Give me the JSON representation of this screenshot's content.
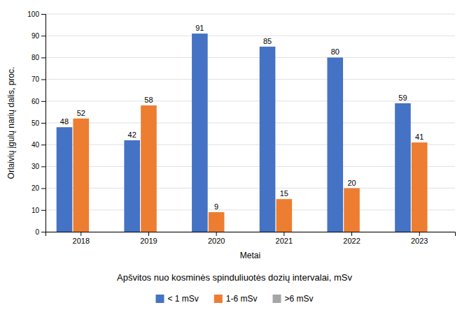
{
  "chart_data": {
    "type": "bar",
    "subtitle": "Apšvitos nuo kosminės spinduliuotės dozių intervalai, mSv",
    "x_label": "Metai",
    "y_label": "Orlaivių įgulų narių dalis, proc.",
    "categories": [
      "2018",
      "2019",
      "2020",
      "2021",
      "2022",
      "2023"
    ],
    "series": [
      {
        "name": "< 1 mSv",
        "color": "#4472C4",
        "values": [
          48,
          42,
          91,
          85,
          80,
          59
        ]
      },
      {
        "name": "1-6 mSv",
        "color": "#ED7D31",
        "values": [
          52,
          58,
          9,
          15,
          20,
          41
        ]
      },
      {
        "name": ">6 mSv",
        "color": "#A5A5A5",
        "values": [
          0,
          0,
          0,
          0,
          0,
          0
        ]
      }
    ],
    "ylim": [
      0,
      100
    ],
    "yticks": [
      0,
      10,
      20,
      30,
      40,
      50,
      60,
      70,
      80,
      90,
      100
    ],
    "grid": true,
    "legend": "bottom",
    "data_labels": true
  }
}
